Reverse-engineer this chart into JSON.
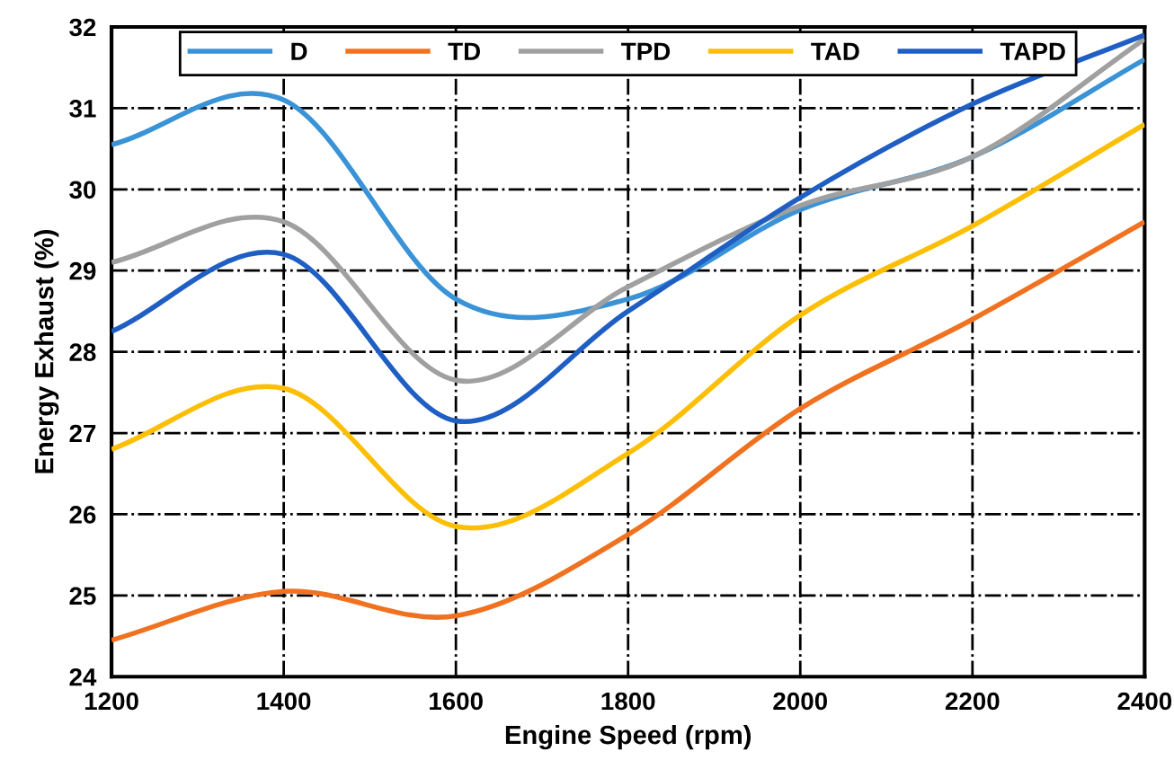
{
  "chart_data": {
    "type": "line",
    "xlabel": "Engine Speed (rpm)",
    "ylabel": "Energy Exhaust (%)",
    "x": [
      1200,
      1400,
      1600,
      1800,
      2000,
      2200,
      2400
    ],
    "series": [
      {
        "name": "D",
        "color": "#3a93d6",
        "values": [
          30.55,
          31.1,
          28.65,
          28.65,
          29.75,
          30.4,
          31.6
        ]
      },
      {
        "name": "TD",
        "color": "#f07220",
        "values": [
          24.45,
          25.05,
          24.75,
          25.75,
          27.3,
          28.4,
          29.6
        ]
      },
      {
        "name": "TPD",
        "color": "#a0a0a0",
        "values": [
          29.1,
          29.6,
          27.65,
          28.8,
          29.8,
          30.4,
          31.85
        ]
      },
      {
        "name": "TAD",
        "color": "#fcbf05",
        "values": [
          26.8,
          27.55,
          25.85,
          26.75,
          28.45,
          29.55,
          30.8
        ]
      },
      {
        "name": "TAPD",
        "color": "#1f5fc4",
        "values": [
          28.25,
          29.2,
          27.15,
          28.5,
          29.9,
          31.05,
          31.9
        ]
      }
    ],
    "xlim": [
      1200,
      2400
    ],
    "xticks": [
      1200,
      1400,
      1600,
      1800,
      2000,
      2200,
      2400
    ],
    "ylim": [
      24,
      32
    ],
    "yticks": [
      24,
      25,
      26,
      27,
      28,
      29,
      30,
      31,
      32
    ],
    "grid": true,
    "legend": "top",
    "line_style": "solid"
  }
}
